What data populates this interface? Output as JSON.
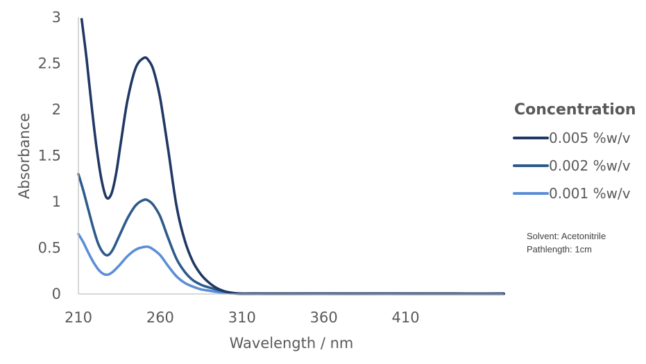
{
  "chart_data": {
    "type": "line",
    "title": "",
    "xlabel": "Wavelength / nm",
    "ylabel": "Absorbance",
    "xlim": [
      210,
      470
    ],
    "ylim": [
      0,
      3
    ],
    "x_ticks": [
      210,
      260,
      310,
      360,
      410
    ],
    "y_ticks": [
      0,
      0.5,
      1,
      1.5,
      2,
      2.5,
      3
    ],
    "y_tick_labels": [
      "0",
      "0.5",
      "1",
      "1.5",
      "2",
      "2.5",
      "3"
    ],
    "grid": false,
    "legend_title": "Concentration",
    "legend_position": "right",
    "series": [
      {
        "name": "0.005 %w/v",
        "color": "#1f3864",
        "x": [
          212,
          215,
          218,
          221,
          224,
          227,
          230,
          233,
          236,
          240,
          245,
          250,
          253,
          256,
          260,
          265,
          270,
          275,
          280,
          285,
          290,
          295,
          300,
          305,
          310,
          320,
          340,
          360,
          380,
          400,
          420,
          440,
          460,
          470
        ],
        "y": [
          2.98,
          2.55,
          2.05,
          1.6,
          1.25,
          1.05,
          1.08,
          1.3,
          1.65,
          2.1,
          2.45,
          2.56,
          2.53,
          2.42,
          2.12,
          1.55,
          0.95,
          0.58,
          0.35,
          0.21,
          0.12,
          0.06,
          0.025,
          0.008,
          0.003,
          0.004,
          0.003,
          0.004,
          0.003,
          0.004,
          0.003,
          0.003,
          0.002,
          0.003
        ]
      },
      {
        "name": "0.002 %w/v",
        "color": "#2e5a8c",
        "x": [
          210,
          213,
          216,
          219,
          222,
          225,
          228,
          231,
          235,
          240,
          245,
          250,
          253,
          256,
          260,
          265,
          270,
          275,
          280,
          285,
          290,
          295,
          300,
          305,
          310,
          320,
          340,
          360,
          380,
          400,
          420,
          440,
          460,
          470
        ],
        "y": [
          1.3,
          1.12,
          0.92,
          0.72,
          0.55,
          0.45,
          0.42,
          0.48,
          0.63,
          0.82,
          0.96,
          1.02,
          1.01,
          0.96,
          0.84,
          0.6,
          0.38,
          0.24,
          0.15,
          0.1,
          0.07,
          0.045,
          0.025,
          0.01,
          0.004,
          0.004,
          0.003,
          0.004,
          0.003,
          0.004,
          0.003,
          0.003,
          0.002,
          0.003
        ]
      },
      {
        "name": "0.001 %w/v",
        "color": "#5b8ed6",
        "x": [
          210,
          213,
          216,
          219,
          222,
          225,
          228,
          231,
          235,
          240,
          245,
          250,
          253,
          256,
          260,
          265,
          270,
          275,
          280,
          285,
          290,
          295,
          300,
          305,
          310,
          320,
          340,
          360,
          380,
          400,
          420,
          440,
          460,
          470
        ],
        "y": [
          0.65,
          0.56,
          0.45,
          0.35,
          0.27,
          0.22,
          0.21,
          0.24,
          0.31,
          0.41,
          0.48,
          0.51,
          0.51,
          0.48,
          0.42,
          0.3,
          0.19,
          0.12,
          0.08,
          0.05,
          0.035,
          0.022,
          0.012,
          0.005,
          0.002,
          0.003,
          0.002,
          0.003,
          0.002,
          0.003,
          0.002,
          0.002,
          0.002,
          0.002
        ]
      }
    ]
  },
  "annotation": {
    "line1": "Solvent: Acetonitrile",
    "line2": "Pathlength: 1cm"
  }
}
